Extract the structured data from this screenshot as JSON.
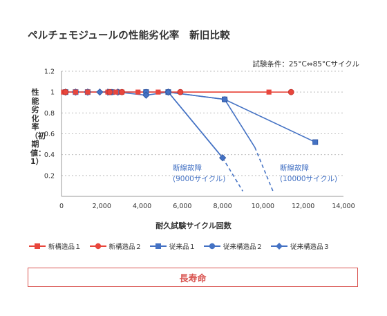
{
  "page": {
    "title": "ペルチェモジュールの性能劣化率　新旧比較",
    "condition": "試験条件：25°C⇔85°Cサイクル",
    "banner": "長寿命"
  },
  "chart_data": {
    "type": "line",
    "title": "ペルチェモジュールの性能劣化率　新旧比較",
    "subtitle": "試験条件：25°C⇔85°Cサイクル",
    "xlabel": "耐久試験サイクル回数",
    "ylabel": "性能劣化率（初期値：1）",
    "xlim": [
      0,
      14000
    ],
    "ylim": [
      0,
      1.2
    ],
    "x_ticks": [
      0,
      2000,
      4000,
      6000,
      8000,
      10000,
      12000,
      14000
    ],
    "x_tick_labels": [
      "0",
      "2,000",
      "4,000",
      "6,000",
      "8,000",
      "10,000",
      "12,000",
      "14,000"
    ],
    "y_ticks": [
      0.2,
      0.4,
      0.6,
      0.8,
      1,
      1.2
    ],
    "y_tick_labels": [
      "0.2",
      "0.4",
      "0.6",
      "0.8",
      "1",
      "1.2"
    ],
    "grid": "horizontal dotted",
    "legend_position": "bottom",
    "series": [
      {
        "name": "新構造品１",
        "color": "#e8463c",
        "marker": "square",
        "points": [
          [
            100,
            1
          ],
          [
            700,
            1
          ],
          [
            1300,
            1
          ],
          [
            2300,
            1
          ],
          [
            2700,
            1
          ],
          [
            3000,
            1
          ],
          [
            3800,
            1
          ],
          [
            4800,
            1
          ],
          [
            10300,
            1
          ]
        ]
      },
      {
        "name": "新構造品２",
        "color": "#e8463c",
        "marker": "circle",
        "points": [
          [
            200,
            1
          ],
          [
            2400,
            1
          ],
          [
            3000,
            1
          ],
          [
            5900,
            1
          ],
          [
            11400,
            1
          ]
        ]
      },
      {
        "name": "従来品１",
        "color": "#4472c4",
        "marker": "square",
        "points": [
          [
            200,
            1
          ],
          [
            700,
            1
          ],
          [
            1300,
            1
          ],
          [
            2500,
            1
          ],
          [
            4200,
            1
          ],
          [
            5300,
            1
          ],
          [
            8100,
            0.93
          ],
          [
            12600,
            0.52
          ]
        ]
      },
      {
        "name": "従来構造品２",
        "color": "#4472c4",
        "marker": "circle",
        "points": [
          [
            200,
            1
          ],
          [
            700,
            1
          ],
          [
            1300,
            1
          ],
          [
            2500,
            1
          ],
          [
            2800,
            1
          ],
          [
            4200,
            1
          ],
          [
            5300,
            1
          ],
          [
            8100,
            0.93
          ]
        ]
      },
      {
        "name": "従来構造品３",
        "color": "#4472c4",
        "marker": "diamond",
        "points": [
          [
            200,
            1
          ],
          [
            700,
            1
          ],
          [
            1300,
            1
          ],
          [
            1900,
            1
          ],
          [
            2300,
            1
          ],
          [
            2800,
            1
          ],
          [
            4200,
            0.97
          ],
          [
            5300,
            1
          ],
          [
            8000,
            0.37
          ]
        ]
      }
    ],
    "failure_lines": [
      {
        "from": [
          5300,
          1
        ],
        "to": [
          8000,
          0.37
        ],
        "dashed_to": [
          9000,
          0.05
        ],
        "color": "#4472c4"
      },
      {
        "from": [
          8100,
          0.93
        ],
        "to": [
          9600,
          0.47
        ],
        "dashed_to": [
          10500,
          0.05
        ],
        "color": "#4472c4"
      }
    ],
    "annotations": [
      {
        "line1": "断線故障",
        "line2": "(9000サイクル)"
      },
      {
        "line1": "断線故障",
        "line2": "(10000サイクル)"
      }
    ]
  }
}
